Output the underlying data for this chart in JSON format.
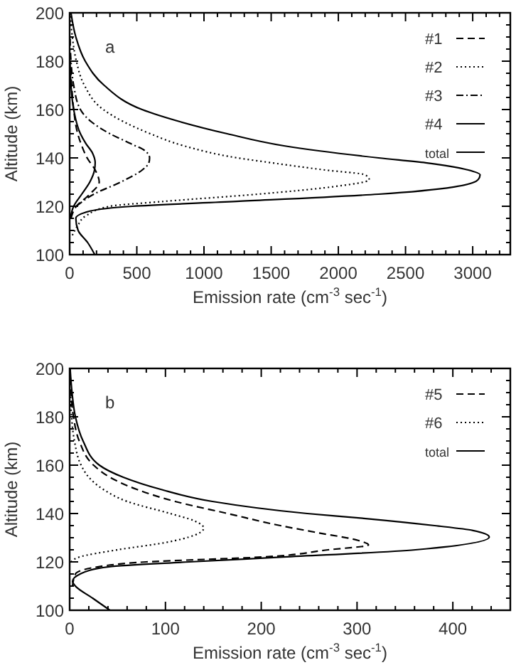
{
  "chart_data": [
    {
      "type": "line",
      "xlabel": "Emission rate (cm$^{-3}$ sec$^{-1}$)",
      "ylabel": "Altitude (km)",
      "annotations": [
        "a"
      ],
      "legend": "top right",
      "grid": false,
      "xlim": [
        0,
        3280
      ],
      "ylim": [
        100,
        200
      ],
      "xticks": [
        0,
        {
          "value": 100,
          "label": null
        },
        {
          "value": 200,
          "label": null
        },
        {
          "value": 300,
          "label": null
        },
        {
          "value": 400,
          "label": null
        },
        500,
        {
          "value": 600,
          "label": null
        },
        {
          "value": 700,
          "label": null
        },
        {
          "value": 800,
          "label": null
        },
        {
          "value": 900,
          "label": null
        },
        1000,
        {
          "value": 1100,
          "label": null
        },
        {
          "value": 1200,
          "label": null
        },
        {
          "value": 1300,
          "label": null
        },
        {
          "value": 1400,
          "label": null
        },
        1500,
        {
          "value": 1600,
          "label": null
        },
        {
          "value": 1700,
          "label": null
        },
        {
          "value": 1800,
          "label": null
        },
        {
          "value": 1900,
          "label": null
        },
        2000,
        {
          "value": 2100,
          "label": null
        },
        {
          "value": 2200,
          "label": null
        },
        {
          "value": 2300,
          "label": null
        },
        {
          "value": 2400,
          "label": null
        },
        2500,
        {
          "value": 2600,
          "label": null
        },
        {
          "value": 2700,
          "label": null
        },
        {
          "value": 2800,
          "label": null
        },
        {
          "value": 2900,
          "label": null
        },
        3000,
        {
          "value": 3100,
          "label": null
        },
        {
          "value": 3200,
          "label": null
        }
      ],
      "yticks": [
        100,
        {
          "value": 105,
          "label": null
        },
        {
          "value": 110,
          "label": null
        },
        {
          "value": 115,
          "label": null
        },
        120,
        {
          "value": 125,
          "label": null
        },
        {
          "value": 130,
          "label": null
        },
        {
          "value": 135,
          "label": null
        },
        140,
        {
          "value": 145,
          "label": null
        },
        {
          "value": 150,
          "label": null
        },
        {
          "value": 155,
          "label": null
        },
        160,
        {
          "value": 165,
          "label": null
        },
        {
          "value": 170,
          "label": null
        },
        {
          "value": 175,
          "label": null
        },
        180,
        {
          "value": 185,
          "label": null
        },
        {
          "value": 190,
          "label": null
        },
        {
          "value": 195,
          "label": null
        },
        200
      ],
      "series": [
        {
          "name": "#1",
          "color": "#000000",
          "line_style": "dashed",
          "x": [
            10,
            50,
            150,
            220,
            190,
            130,
            90,
            60,
            30,
            15,
            5
          ],
          "values": [
            115,
            120,
            125,
            130,
            135,
            140,
            145,
            150,
            160,
            170,
            180
          ]
        },
        {
          "name": "#2",
          "color": "#000000",
          "line_style": "dotted",
          "x": [
            20,
            60,
            120,
            300,
            700,
            1400,
            1950,
            2230,
            2200,
            1900,
            1500,
            1250,
            850,
            600,
            400,
            250,
            110,
            50,
            20,
            5
          ],
          "values": [
            108,
            112,
            116,
            120,
            122,
            125,
            128,
            131,
            133,
            135,
            138,
            140,
            145,
            150,
            155,
            160,
            170,
            180,
            190,
            200
          ]
        },
        {
          "name": "#3",
          "color": "#000000",
          "line_style": "dashdot",
          "x": [
            50,
            180,
            380,
            540,
            590,
            595,
            560,
            450,
            300,
            160,
            80,
            30,
            10,
            3
          ],
          "values": [
            120,
            125,
            130,
            135,
            138,
            140,
            143,
            146,
            150,
            155,
            160,
            170,
            180,
            190
          ]
        },
        {
          "name": "#4",
          "color": "#000000",
          "line_style": "solid",
          "x": [
            5,
            30,
            90,
            150,
            185,
            190,
            170,
            120,
            80,
            30,
            10,
            3
          ],
          "values": [
            115,
            120,
            125,
            130,
            135,
            138,
            142,
            146,
            150,
            160,
            170,
            180
          ]
        },
        {
          "name": "total",
          "color": "#000000",
          "line_style": "solid",
          "x": [
            187,
            134,
            63,
            46,
            151,
            468,
            1243,
            2300,
            2860,
            3040,
            3055,
            2967,
            2650,
            2300,
            1595,
            1172,
            820,
            539,
            257,
            116,
            46,
            10
          ],
          "values": [
            100,
            105,
            110,
            115,
            118,
            120,
            122,
            125,
            128,
            131,
            133,
            135,
            138,
            140,
            145,
            150,
            155,
            160,
            170,
            180,
            190,
            200
          ]
        }
      ]
    },
    {
      "type": "line",
      "xlabel": "Emission rate (cm$^{-3}$ sec$^{-1}$)",
      "ylabel": "Altitude (km)",
      "annotations": [
        "b"
      ],
      "legend": "top right",
      "grid": false,
      "xlim": [
        0,
        460
      ],
      "ylim": [
        100,
        200
      ],
      "xticks": [
        0,
        {
          "value": 20,
          "label": null
        },
        {
          "value": 40,
          "label": null
        },
        {
          "value": 60,
          "label": null
        },
        {
          "value": 80,
          "label": null
        },
        100,
        {
          "value": 120,
          "label": null
        },
        {
          "value": 140,
          "label": null
        },
        {
          "value": 160,
          "label": null
        },
        {
          "value": 180,
          "label": null
        },
        200,
        {
          "value": 220,
          "label": null
        },
        {
          "value": 240,
          "label": null
        },
        {
          "value": 260,
          "label": null
        },
        {
          "value": 280,
          "label": null
        },
        300,
        {
          "value": 320,
          "label": null
        },
        {
          "value": 340,
          "label": null
        },
        {
          "value": 360,
          "label": null
        },
        {
          "value": 380,
          "label": null
        },
        400,
        {
          "value": 420,
          "label": null
        },
        {
          "value": 440,
          "label": null
        }
      ],
      "yticks": [
        100,
        {
          "value": 105,
          "label": null
        },
        {
          "value": 110,
          "label": null
        },
        {
          "value": 115,
          "label": null
        },
        120,
        {
          "value": 125,
          "label": null
        },
        {
          "value": 130,
          "label": null
        },
        {
          "value": 135,
          "label": null
        },
        140,
        {
          "value": 145,
          "label": null
        },
        {
          "value": 150,
          "label": null
        },
        {
          "value": 155,
          "label": null
        },
        160,
        {
          "value": 165,
          "label": null
        },
        {
          "value": 170,
          "label": null
        },
        {
          "value": 175,
          "label": null
        },
        180,
        {
          "value": 185,
          "label": null
        },
        {
          "value": 190,
          "label": null
        },
        {
          "value": 195,
          "label": null
        },
        200
      ],
      "series": [
        {
          "name": "#5",
          "color": "#000000",
          "line_style": "dashed",
          "x": [
            3,
            6,
            30,
            80,
            200,
            270,
            312,
            300,
            260,
            220,
            165,
            110,
            70,
            42,
            25,
            10,
            4,
            1.5,
            0.5
          ],
          "values": [
            110,
            115,
            118,
            120,
            122,
            125,
            127,
            129,
            132,
            135,
            140,
            145,
            150,
            155,
            160,
            170,
            180,
            190,
            200
          ]
        },
        {
          "name": "#6",
          "color": "#000000",
          "line_style": "dotted",
          "x": [
            1.5,
            10,
            50,
            100,
            130,
            140,
            130,
            105,
            60,
            35,
            20,
            12,
            5,
            2,
            1
          ],
          "values": [
            120,
            122,
            125,
            128,
            131,
            134,
            137,
            140,
            145,
            150,
            155,
            160,
            170,
            180,
            190
          ]
        },
        {
          "name": "total",
          "color": "#000000",
          "line_style": "solid",
          "x": [
            42,
            24,
            6,
            3,
            11,
            41,
            125,
            223,
            361,
            438,
            421,
            381,
            307,
            248,
            149,
            95,
            56,
            31,
            14,
            6,
            2.5,
            0.5
          ],
          "values": [
            100,
            105,
            110,
            112,
            115,
            118,
            120,
            122,
            125,
            130.3,
            133,
            135,
            138,
            140,
            145,
            150,
            155,
            160,
            170,
            180,
            190,
            200
          ]
        }
      ]
    }
  ]
}
